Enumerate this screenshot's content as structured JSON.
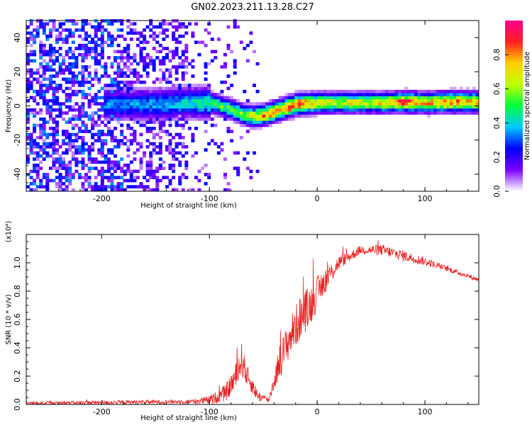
{
  "title": "GN02.2023.211.13.28.C27",
  "chart_data": [
    {
      "type": "heatmap",
      "xlabel": "Height of straight line (km)",
      "ylabel": "Frequency (Hz)",
      "xlim": [
        -270,
        150
      ],
      "ylim": [
        -50,
        50
      ],
      "x_ticks": [
        -200,
        -100,
        0,
        100
      ],
      "x_tick_labels": [
        "-200",
        "-100",
        "0",
        "100"
      ],
      "y_ticks": [
        -40,
        -20,
        0,
        20,
        40
      ],
      "y_tick_labels": [
        "-40",
        "-20",
        "0",
        "20",
        "40"
      ],
      "colorbar": {
        "label": "Normalized spectral amplitude",
        "range": [
          0,
          1
        ],
        "ticks": [
          0,
          0.2,
          0.4,
          0.6,
          0.8
        ],
        "tick_labels": [
          "0.0",
          "0.2",
          "0.4",
          "0.6",
          "0.8"
        ],
        "colormap": [
          "#ffffff",
          "#7a00ff",
          "#0000ff",
          "#00c8ff",
          "#00ff40",
          "#c0ff00",
          "#ffd000",
          "#ff2020",
          "#ff0090"
        ]
      },
      "ridge": [
        {
          "x": -190,
          "y": 0,
          "amp": 0.35
        },
        {
          "x": -150,
          "y": 0,
          "amp": 0.38
        },
        {
          "x": -120,
          "y": 1,
          "amp": 0.42
        },
        {
          "x": -100,
          "y": 1,
          "amp": 0.5
        },
        {
          "x": -90,
          "y": -1,
          "amp": 0.55
        },
        {
          "x": -80,
          "y": -3,
          "amp": 0.58
        },
        {
          "x": -70,
          "y": -6,
          "amp": 0.6
        },
        {
          "x": -60,
          "y": -7,
          "amp": 0.7
        },
        {
          "x": -50,
          "y": -6,
          "amp": 0.85
        },
        {
          "x": -40,
          "y": -4,
          "amp": 0.9
        },
        {
          "x": -30,
          "y": -2,
          "amp": 0.9
        },
        {
          "x": -20,
          "y": 0,
          "amp": 0.95
        },
        {
          "x": 0,
          "y": 1,
          "amp": 0.75
        },
        {
          "x": 20,
          "y": 1,
          "amp": 0.72
        },
        {
          "x": 40,
          "y": 1,
          "amp": 0.72
        },
        {
          "x": 60,
          "y": 1,
          "amp": 0.75
        },
        {
          "x": 80,
          "y": 1.5,
          "amp": 0.92
        },
        {
          "x": 100,
          "y": 1,
          "amp": 0.78
        },
        {
          "x": 120,
          "y": 1.5,
          "amp": 0.88
        },
        {
          "x": 150,
          "y": 1.5,
          "amp": 0.85
        }
      ]
    },
    {
      "type": "line",
      "xlabel": "Height of straight line (km)",
      "ylabel": "SNR (10 * v/v)",
      "y_multiplier": "(x10⁴)",
      "xlim": [
        -270,
        150
      ],
      "ylim": [
        0,
        1.2
      ],
      "x_ticks": [
        -200,
        -100,
        0,
        100
      ],
      "x_tick_labels": [
        "-200",
        "-100",
        "0",
        "100"
      ],
      "y_ticks": [
        0,
        0.2,
        0.4,
        0.6,
        0.8,
        1.0
      ],
      "y_tick_labels": [
        "0.0",
        "0.2",
        "0.4",
        "0.6",
        "0.8",
        "1.0"
      ],
      "series_color": "#e82020",
      "envelope": [
        {
          "x": -270,
          "y": 0.01,
          "noise": 0.01
        },
        {
          "x": -180,
          "y": 0.015,
          "noise": 0.015
        },
        {
          "x": -120,
          "y": 0.02,
          "noise": 0.015
        },
        {
          "x": -100,
          "y": 0.03,
          "noise": 0.03
        },
        {
          "x": -85,
          "y": 0.08,
          "noise": 0.06
        },
        {
          "x": -75,
          "y": 0.2,
          "noise": 0.1
        },
        {
          "x": -70,
          "y": 0.32,
          "noise": 0.12
        },
        {
          "x": -65,
          "y": 0.2,
          "noise": 0.08
        },
        {
          "x": -55,
          "y": 0.06,
          "noise": 0.04
        },
        {
          "x": -45,
          "y": 0.03,
          "noise": 0.02
        },
        {
          "x": -35,
          "y": 0.3,
          "noise": 0.12
        },
        {
          "x": -25,
          "y": 0.48,
          "noise": 0.14
        },
        {
          "x": -15,
          "y": 0.62,
          "noise": 0.16
        },
        {
          "x": -5,
          "y": 0.72,
          "noise": 0.14
        },
        {
          "x": 5,
          "y": 0.85,
          "noise": 0.1
        },
        {
          "x": 20,
          "y": 1.0,
          "noise": 0.05
        },
        {
          "x": 40,
          "y": 1.09,
          "noise": 0.03
        },
        {
          "x": 60,
          "y": 1.09,
          "noise": 0.04
        },
        {
          "x": 80,
          "y": 1.05,
          "noise": 0.04
        },
        {
          "x": 100,
          "y": 1.01,
          "noise": 0.03
        },
        {
          "x": 120,
          "y": 0.96,
          "noise": 0.02
        },
        {
          "x": 150,
          "y": 0.88,
          "noise": 0.015
        }
      ]
    }
  ]
}
